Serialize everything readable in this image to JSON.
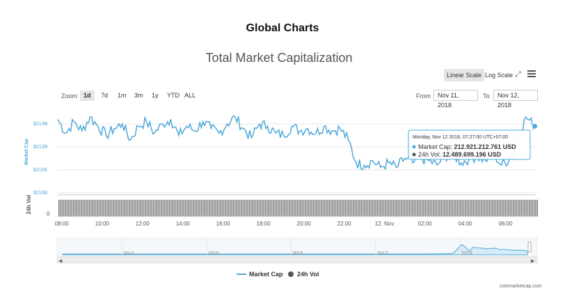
{
  "page": {
    "heading": "Global Charts",
    "credit": "coinmarketcap.com"
  },
  "controls": {
    "linear_scale": "Linear Scale",
    "log_scale": "Log Scale",
    "zoom_label": "Zoom",
    "zoom_buttons": [
      "1d",
      "7d",
      "1m",
      "3m",
      "1y",
      "YTD",
      "ALL"
    ],
    "zoom_active": "1d",
    "from_label": "From",
    "from_value": "Nov 11, 2018",
    "to_label": "To",
    "to_value": "Nov 12, 2018"
  },
  "tooltip": {
    "header": "Monday, Nov 12 2018, 07:27:00 UTC+07:00",
    "market_cap_label": "Market Cap: ",
    "market_cap_value": "212.921.212.761 USD",
    "vol_label": "24h Vol: ",
    "vol_value": "12.489.699.196 USD"
  },
  "legend": {
    "market_cap": "Market Cap",
    "vol": "24h Vol"
  },
  "chart_data": {
    "type": "line",
    "title": "Total Market Capitalization",
    "ylabel": "Market Cap",
    "ylabel_vol": "24h Vol",
    "y_ticks": [
      "$213B",
      "$212B",
      "$211B",
      "$210B"
    ],
    "y_tick_values": [
      213,
      212,
      211,
      210
    ],
    "ylim": [
      210,
      213.7
    ],
    "vol_ticks": [
      "0"
    ],
    "x_ticks": [
      "08:00",
      "10:00",
      "12:00",
      "14:00",
      "16:00",
      "18:00",
      "20:00",
      "22:00",
      "12. Nov",
      "02:00",
      "04:00",
      "06:00"
    ],
    "x_tick_hours": [
      8,
      10,
      12,
      14,
      16,
      18,
      20,
      22,
      24,
      26,
      28,
      30
    ],
    "x_range_hours": [
      7.8,
      31.5
    ],
    "series": [
      {
        "name": "Market Cap",
        "unit": "USD billions",
        "x_hours": [
          7.8,
          8.2,
          8.6,
          9.0,
          9.4,
          9.8,
          10.2,
          10.6,
          11.0,
          11.4,
          11.8,
          12.2,
          12.6,
          13.0,
          13.4,
          13.8,
          14.2,
          14.6,
          15.0,
          15.4,
          15.8,
          16.2,
          16.6,
          17.0,
          17.4,
          17.8,
          18.2,
          18.6,
          19.0,
          19.4,
          19.8,
          20.2,
          20.6,
          21.0,
          21.4,
          21.8,
          22.2,
          22.6,
          23.0,
          23.4,
          23.8,
          24.2,
          24.6,
          25.0,
          25.4,
          25.8,
          26.2,
          26.6,
          27.0,
          27.4,
          27.8,
          28.2,
          28.6,
          29.0,
          29.4,
          29.8,
          30.2,
          30.6,
          31.0,
          31.45
        ],
        "values": [
          213.2,
          212.6,
          213.1,
          212.7,
          213.3,
          212.9,
          212.5,
          212.8,
          213.0,
          212.3,
          212.9,
          213.1,
          212.6,
          213.0,
          213.2,
          212.5,
          212.9,
          212.7,
          213.1,
          212.8,
          212.6,
          213.0,
          213.3,
          212.8,
          212.4,
          213.0,
          212.9,
          212.6,
          212.5,
          212.9,
          212.7,
          212.8,
          212.6,
          212.9,
          212.7,
          212.8,
          212.3,
          211.3,
          211.2,
          211.4,
          211.1,
          211.3,
          211.1,
          211.5,
          211.3,
          211.5,
          211.4,
          211.2,
          211.6,
          211.7,
          211.3,
          211.5,
          211.6,
          211.4,
          211.7,
          211.2,
          211.5,
          212.1,
          213.3,
          212.9
        ]
      },
      {
        "name": "24h Vol",
        "unit": "USD billions",
        "note": "dense near-constant volume bars",
        "approx_value": 12.49
      }
    ],
    "navigator": {
      "x_ticks": [
        "2014",
        "2015",
        "2016",
        "2017",
        "2018"
      ]
    }
  }
}
